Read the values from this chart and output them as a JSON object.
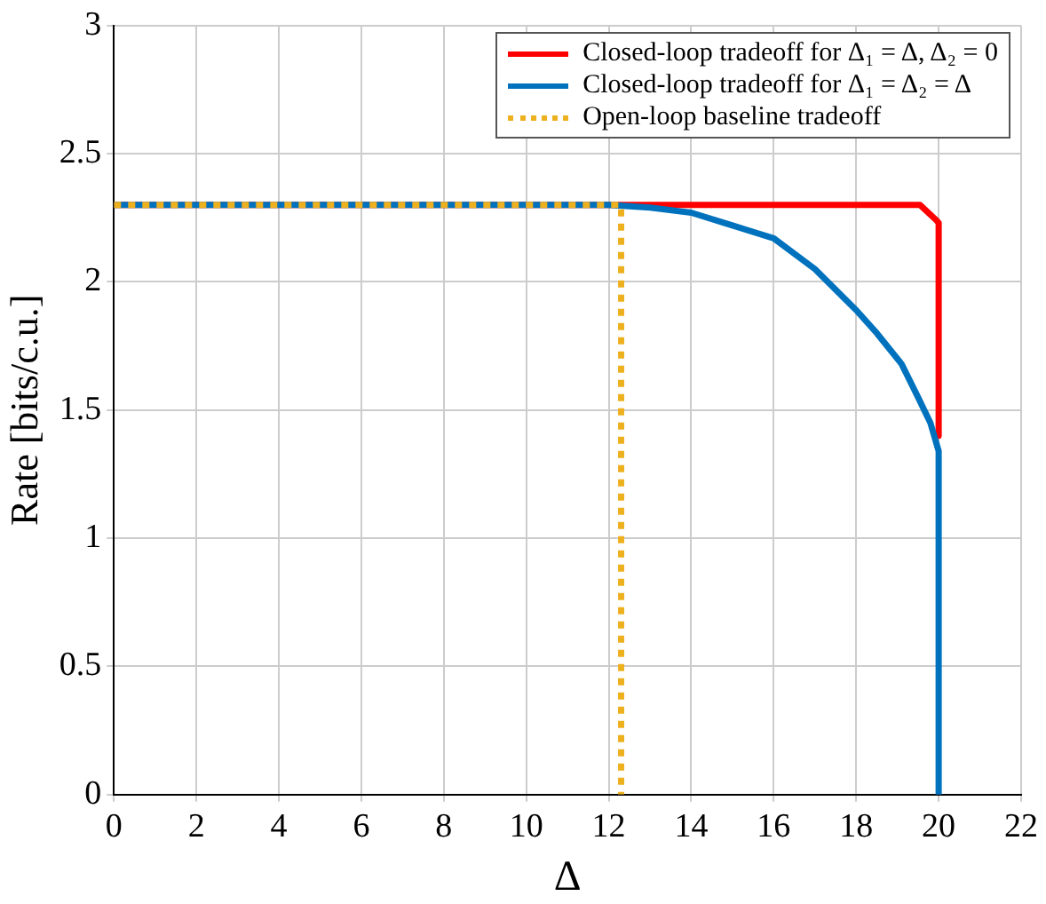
{
  "chart_data": {
    "type": "line",
    "xlabel": "Δ",
    "ylabel": "Rate [bits/c.u.]",
    "xlim": [
      0,
      22
    ],
    "ylim": [
      0,
      3
    ],
    "xticks": [
      0,
      2,
      4,
      6,
      8,
      10,
      12,
      14,
      16,
      18,
      20,
      22
    ],
    "yticks": [
      0,
      0.5,
      1,
      1.5,
      2,
      2.5,
      3
    ],
    "grid": true,
    "legend": "top right",
    "marker": "none",
    "series": [
      {
        "name": "Closed-loop tradeoff for Δ₁ = Δ, Δ₂ = 0",
        "color": "#ff0000",
        "line_style": "solid",
        "x": [
          0,
          19.55,
          19.95,
          20,
          20
        ],
        "values": [
          2.3,
          2.3,
          2.24,
          2.23,
          1.4
        ]
      },
      {
        "name": "Closed-loop tradeoff for Δ₁ = Δ₂ = Δ",
        "color": "#0072bd",
        "line_style": "solid",
        "x": [
          0,
          12,
          13,
          14,
          15,
          16,
          17,
          18,
          18.5,
          19.1,
          19.5,
          19.8,
          20,
          20
        ],
        "values": [
          2.3,
          2.3,
          2.29,
          2.27,
          2.22,
          2.17,
          2.05,
          1.89,
          1.8,
          1.68,
          1.55,
          1.45,
          1.34,
          0
        ]
      },
      {
        "name": "Open-loop baseline tradeoff",
        "color": "#edb120",
        "line_style": "dotted",
        "x": [
          0,
          12.3,
          12.3
        ],
        "values": [
          2.3,
          2.3,
          0
        ]
      }
    ]
  }
}
